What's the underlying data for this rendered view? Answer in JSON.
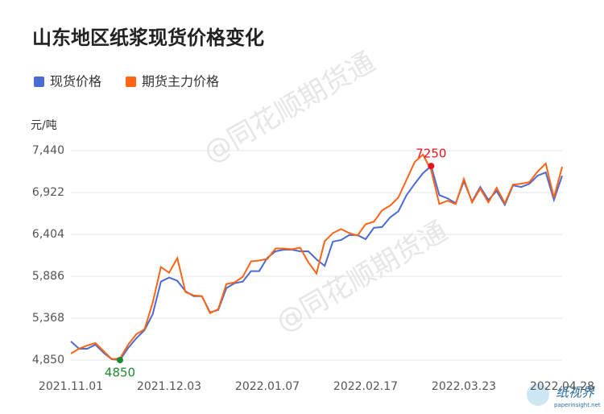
{
  "chart_data": {
    "type": "line",
    "title": "山东地区纸浆现货价格变化",
    "y_axis_label": "元/吨",
    "watermark": "@同花顺期货通",
    "logo": {
      "name": "纸视界",
      "url": "paperinsight.net"
    },
    "categories": [
      "2021.11.01",
      null,
      null,
      null,
      null,
      null,
      null,
      null,
      null,
      null,
      null,
      null,
      "2021.12.03",
      null,
      null,
      null,
      null,
      null,
      null,
      null,
      null,
      null,
      null,
      null,
      "2022.01.07",
      null,
      null,
      null,
      null,
      null,
      null,
      null,
      null,
      null,
      null,
      null,
      "2022.02.17",
      null,
      null,
      null,
      null,
      null,
      null,
      null,
      null,
      null,
      null,
      null,
      "2022.03.23",
      null,
      null,
      null,
      null,
      null,
      null,
      null,
      null,
      null,
      null,
      null,
      "2022.04.28"
    ],
    "series": [
      {
        "name": "现货价格",
        "color": "#4a6bd3",
        "values": [
          5080,
          4990,
          4990,
          5040,
          4940,
          4860,
          4850,
          5000,
          5120,
          5220,
          5420,
          5820,
          5870,
          5830,
          5700,
          5640,
          5640,
          5440,
          5470,
          5740,
          5800,
          5820,
          5950,
          5950,
          6115,
          6195,
          6215,
          6215,
          6195,
          6195,
          6095,
          6015,
          6315,
          6335,
          6395,
          6395,
          6345,
          6485,
          6495,
          6615,
          6690,
          6890,
          7030,
          7160,
          7250,
          6890,
          6850,
          6790,
          7060,
          6810,
          6990,
          6830,
          6940,
          6770,
          7010,
          6990,
          7030,
          7130,
          7170,
          6830,
          7130
        ]
      },
      {
        "name": "期货主力价格",
        "color": "#ff6314",
        "values": [
          4930,
          4990,
          5030,
          5060,
          4960,
          4860,
          4870,
          5040,
          5170,
          5230,
          5560,
          6000,
          5930,
          6110,
          5690,
          5650,
          5640,
          5430,
          5480,
          5790,
          5810,
          5880,
          6070,
          6080,
          6100,
          6230,
          6230,
          6220,
          6240,
          6060,
          5920,
          6320,
          6420,
          6470,
          6420,
          6390,
          6530,
          6560,
          6700,
          6760,
          6860,
          7080,
          7300,
          7390,
          7200,
          6780,
          6820,
          6780,
          7090,
          6800,
          6970,
          6800,
          6980,
          6790,
          7020,
          7030,
          7050,
          7180,
          7280,
          6860,
          7240
        ]
      }
    ],
    "annotations": [
      {
        "text": "7250",
        "series": 0,
        "index": 44,
        "color": "#e8121b"
      },
      {
        "text": "4850",
        "series": 0,
        "index": 6,
        "color": "#1e8a2e"
      }
    ],
    "ylim": [
      4850,
      7440
    ],
    "yticks": [
      {
        "value": 4850,
        "label": "4,850"
      },
      {
        "value": 5368,
        "label": "5,368"
      },
      {
        "value": 5886,
        "label": "5,886"
      },
      {
        "value": 6404,
        "label": "6,404"
      },
      {
        "value": 6922,
        "label": "6,922"
      },
      {
        "value": 7440,
        "label": "7,440"
      }
    ],
    "grid": true
  }
}
